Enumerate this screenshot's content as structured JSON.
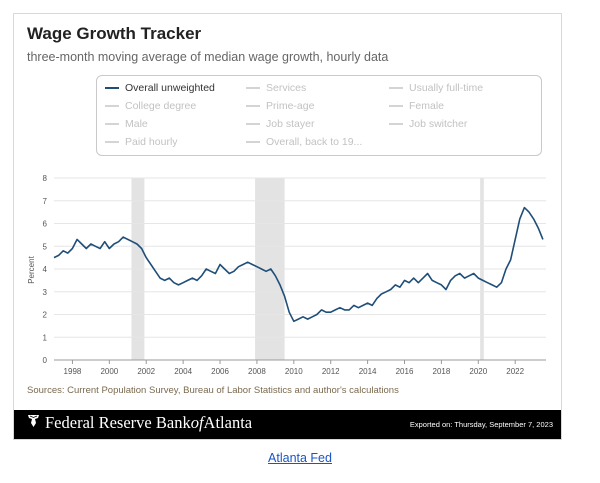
{
  "header": {
    "title": "Wage Growth Tracker",
    "subtitle": "three-month moving average of median wage growth, hourly data"
  },
  "legend": {
    "items": [
      {
        "label": "Overall unweighted",
        "active": true
      },
      {
        "label": "Services",
        "active": false
      },
      {
        "label": "Usually full-time",
        "active": false
      },
      {
        "label": "College degree",
        "active": false
      },
      {
        "label": "Prime-age",
        "active": false
      },
      {
        "label": "Female",
        "active": false
      },
      {
        "label": "Male",
        "active": false
      },
      {
        "label": "Job stayer",
        "active": false
      },
      {
        "label": "Job switcher",
        "active": false
      },
      {
        "label": "Paid hourly",
        "active": false
      },
      {
        "label": "Overall, back to 19...",
        "active": false
      }
    ]
  },
  "chart_data": {
    "type": "line",
    "title": "Wage Growth Tracker",
    "ylabel": "Percent",
    "xlabel": "",
    "xlim": [
      1997,
      2023.67
    ],
    "ylim": [
      0,
      8
    ],
    "yticks": [
      0,
      1,
      2,
      3,
      4,
      5,
      6,
      7,
      8
    ],
    "xticks": [
      1998,
      2000,
      2002,
      2004,
      2006,
      2008,
      2010,
      2012,
      2014,
      2016,
      2018,
      2020,
      2022
    ],
    "grid": true,
    "recessions": [
      [
        2001.2,
        2001.9
      ],
      [
        2007.9,
        2009.5
      ],
      [
        2020.1,
        2020.3
      ]
    ],
    "series": [
      {
        "name": "Overall unweighted",
        "color": "#1f4e79",
        "x": [
          1997.0,
          1997.25,
          1997.5,
          1997.75,
          1998.0,
          1998.25,
          1998.5,
          1998.75,
          1999.0,
          1999.25,
          1999.5,
          1999.75,
          2000.0,
          2000.25,
          2000.5,
          2000.75,
          2001.0,
          2001.25,
          2001.5,
          2001.75,
          2002.0,
          2002.25,
          2002.5,
          2002.75,
          2003.0,
          2003.25,
          2003.5,
          2003.75,
          2004.0,
          2004.25,
          2004.5,
          2004.75,
          2005.0,
          2005.25,
          2005.5,
          2005.75,
          2006.0,
          2006.25,
          2006.5,
          2006.75,
          2007.0,
          2007.25,
          2007.5,
          2007.75,
          2008.0,
          2008.25,
          2008.5,
          2008.75,
          2009.0,
          2009.25,
          2009.5,
          2009.75,
          2010.0,
          2010.25,
          2010.5,
          2010.75,
          2011.0,
          2011.25,
          2011.5,
          2011.75,
          2012.0,
          2012.25,
          2012.5,
          2012.75,
          2013.0,
          2013.25,
          2013.5,
          2013.75,
          2014.0,
          2014.25,
          2014.5,
          2014.75,
          2015.0,
          2015.25,
          2015.5,
          2015.75,
          2016.0,
          2016.25,
          2016.5,
          2016.75,
          2017.0,
          2017.25,
          2017.5,
          2017.75,
          2018.0,
          2018.25,
          2018.5,
          2018.75,
          2019.0,
          2019.25,
          2019.5,
          2019.75,
          2020.0,
          2020.25,
          2020.5,
          2020.75,
          2021.0,
          2021.25,
          2021.5,
          2021.75,
          2022.0,
          2022.25,
          2022.5,
          2022.75,
          2023.0,
          2023.25,
          2023.5
        ],
        "values": [
          4.5,
          4.6,
          4.8,
          4.7,
          4.9,
          5.3,
          5.1,
          4.9,
          5.1,
          5.0,
          4.9,
          5.2,
          4.9,
          5.1,
          5.2,
          5.4,
          5.3,
          5.2,
          5.1,
          4.9,
          4.5,
          4.2,
          3.9,
          3.6,
          3.5,
          3.6,
          3.4,
          3.3,
          3.4,
          3.5,
          3.6,
          3.5,
          3.7,
          4.0,
          3.9,
          3.8,
          4.2,
          4.0,
          3.8,
          3.9,
          4.1,
          4.2,
          4.3,
          4.2,
          4.1,
          4.0,
          3.9,
          4.0,
          3.7,
          3.3,
          2.8,
          2.1,
          1.7,
          1.8,
          1.9,
          1.8,
          1.9,
          2.0,
          2.2,
          2.1,
          2.1,
          2.2,
          2.3,
          2.2,
          2.2,
          2.4,
          2.3,
          2.4,
          2.5,
          2.4,
          2.7,
          2.9,
          3.0,
          3.1,
          3.3,
          3.2,
          3.5,
          3.4,
          3.6,
          3.4,
          3.6,
          3.8,
          3.5,
          3.4,
          3.3,
          3.1,
          3.5,
          3.7,
          3.8,
          3.6,
          3.7,
          3.8,
          3.6,
          3.5,
          3.4,
          3.3,
          3.2,
          3.4,
          4.0,
          4.4,
          5.3,
          6.2,
          6.7,
          6.5,
          6.2,
          5.8,
          5.3
        ]
      }
    ]
  },
  "sources": "Sources: Current Population Survey, Bureau of Labor Statistics and author's calculations",
  "footer": {
    "brand_pre": "Federal Reserve Bank ",
    "brand_of": "of",
    "brand_post": " Atlanta",
    "exported": "Exported on: Thursday, September 7, 2023"
  },
  "link": {
    "label": "Atlanta Fed"
  }
}
